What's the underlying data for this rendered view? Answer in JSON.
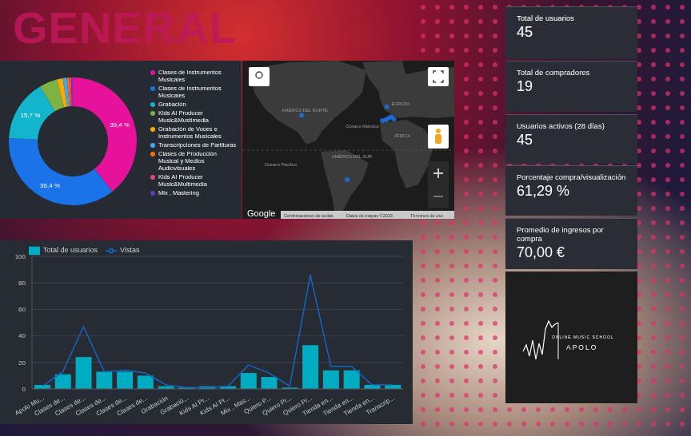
{
  "title": "GENERAL",
  "chart_data": [
    {
      "type": "pie",
      "categories": [
        "Clases de Instrumentos Musicales",
        "Clases de Instrumentos Musicales",
        "Grabación",
        "Kids AI Producer Music&Mustimedia",
        "Grabación de Voces e Instrumentos Musicales",
        "Transcripciones de Partituras",
        "Clases de Producción Musical y Medios Audiovisuales",
        "Kids AI Producer Music&Multimedia",
        "Mix , Mastering"
      ],
      "values": [
        39.4,
        36.4,
        15.7,
        4.5,
        1.5,
        1.0,
        0.6,
        0.5,
        0.4
      ],
      "value_labels": [
        "39,4 %",
        "36,4 %",
        "15,7 %",
        null,
        null,
        null,
        null,
        null,
        null
      ],
      "colors": [
        "#e6129b",
        "#1a73e8",
        "#12b5cb",
        "#7cb342",
        "#f9ab00",
        "#3ea8f5",
        "#ff6d01",
        "#e8457c",
        "#673ab7"
      ],
      "data_labels": true,
      "legend": "right"
    },
    {
      "type": "bar",
      "categories": [
        "Apolo Mu...",
        "Clases de...",
        "Clases de...",
        "Clases de...",
        "Clases de...",
        "Clases de...",
        "Grabación",
        "Grabació...",
        "Kids AI Pr...",
        "Kids AI Pr...",
        "Mix , Mas...",
        "Quiero P...",
        "Quiero Pr...",
        "Quiero Pr...",
        "Tienda en...",
        "Tienda en...",
        "Tienda en...",
        "Transcrip..."
      ],
      "series": [
        {
          "name": "Vistas",
          "type": "line",
          "color": "#1565c0",
          "values": [
            2,
            13,
            47,
            13,
            14,
            12,
            3,
            1,
            1,
            2,
            18,
            12,
            2,
            86,
            17,
            17,
            3,
            3
          ]
        },
        {
          "name": "Total de usuarios",
          "type": "bar",
          "color": "#00acc1",
          "values": [
            3,
            11,
            24,
            13,
            13,
            10,
            2,
            1,
            2,
            2,
            12,
            9,
            1,
            33,
            14,
            14,
            3,
            3
          ]
        }
      ],
      "ylim": [
        0,
        100
      ],
      "yticks": [
        0,
        20,
        40,
        60,
        80,
        100
      ],
      "grid": true,
      "legend": "top left"
    }
  ],
  "map": {
    "labels": [
      "AMÉRICA DEL NORTE",
      "EUROPA",
      "Océano Atlántico",
      "ÁFRICA",
      "AMÉRICA DEL SUR",
      "Océano Pacífico"
    ],
    "points": [
      {
        "lon": -100,
        "lat": 46
      },
      {
        "lon": -3,
        "lat": 57
      },
      {
        "lon": -4,
        "lat": 40
      },
      {
        "lon": -1,
        "lat": 42
      },
      {
        "lon": 2,
        "lat": 44
      },
      {
        "lon": 5,
        "lat": 41
      },
      {
        "lon": -8,
        "lat": 39
      },
      {
        "lon": -48,
        "lat": -39
      }
    ],
    "footer": [
      "Google",
      "Combinaciones de teclas",
      "Datos de mapas ©2023",
      "Términos de uso"
    ]
  },
  "kpis": [
    {
      "label": "Total de usuarios",
      "value": "45"
    },
    {
      "label": "Total de compradores",
      "value": "19"
    },
    {
      "label": "Usuarios activos (28 días)",
      "value": "45"
    },
    {
      "label": "Porcentaje compra/visualización",
      "value": "61,29 %"
    },
    {
      "label": "Promedio de ingresos por compra",
      "value": "70,00 €"
    }
  ],
  "logo": {
    "subtitle": "ONLINE MUSIC SCHOOL",
    "name": "APOLO"
  }
}
